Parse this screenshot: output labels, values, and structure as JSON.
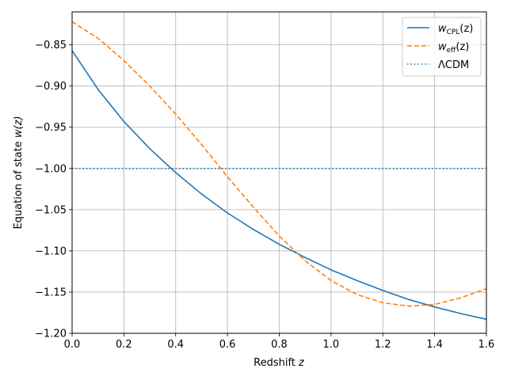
{
  "chart_data": {
    "type": "line",
    "xlabel_text": "Redshift",
    "xlabel_var": "z",
    "ylabel_text": "Equation of state",
    "ylabel_var": "w(z)",
    "xlim": [
      0.0,
      1.6
    ],
    "ylim": [
      -1.2,
      -0.81
    ],
    "xticks": [
      0.0,
      0.2,
      0.4,
      0.6,
      0.8,
      1.0,
      1.2,
      1.4,
      1.6
    ],
    "xtick_labels": [
      "0.0",
      "0.2",
      "0.4",
      "0.6",
      "0.8",
      "1.0",
      "1.2",
      "1.4",
      "1.6"
    ],
    "yticks": [
      -1.2,
      -1.15,
      -1.1,
      -1.05,
      -1.0,
      -0.95,
      -0.9,
      -0.85
    ],
    "ytick_labels": [
      "−1.20",
      "−1.15",
      "−1.10",
      "−1.05",
      "−1.00",
      "−0.95",
      "−0.90",
      "−0.85"
    ],
    "grid": true,
    "legend_position": "upper right",
    "series": [
      {
        "name": "wCPL(z)",
        "legend_base": "w",
        "legend_sub": "CPL",
        "legend_rest": "(z)",
        "color": "#1f77b4",
        "style": "solid",
        "x": [
          0.0,
          0.1,
          0.2,
          0.3,
          0.4,
          0.5,
          0.6,
          0.7,
          0.8,
          0.9,
          1.0,
          1.1,
          1.2,
          1.3,
          1.4,
          1.5,
          1.6
        ],
        "y": [
          -0.857,
          -0.904,
          -0.943,
          -0.976,
          -1.005,
          -1.031,
          -1.054,
          -1.074,
          -1.092,
          -1.108,
          -1.123,
          -1.136,
          -1.148,
          -1.159,
          -1.168,
          -1.176,
          -1.183
        ]
      },
      {
        "name": "weff(z)",
        "legend_base": "w",
        "legend_sub": "eff",
        "legend_rest": "(z)",
        "color": "#ff7f0e",
        "style": "dashed",
        "x": [
          0.0,
          0.1,
          0.2,
          0.3,
          0.4,
          0.5,
          0.6,
          0.7,
          0.8,
          0.9,
          1.0,
          1.1,
          1.2,
          1.3,
          1.4,
          1.5,
          1.6
        ],
        "y": [
          -0.822,
          -0.842,
          -0.869,
          -0.9,
          -0.934,
          -0.971,
          -1.01,
          -1.047,
          -1.082,
          -1.112,
          -1.136,
          -1.153,
          -1.163,
          -1.167,
          -1.165,
          -1.157,
          -1.146
        ]
      },
      {
        "name": "ΛCDM",
        "legend_base": "ΛCDM",
        "legend_sub": "",
        "legend_rest": "",
        "color": "#1f77b4",
        "style": "dotted",
        "x": [
          0.0,
          1.6
        ],
        "y": [
          -1.0,
          -1.0
        ]
      }
    ]
  }
}
